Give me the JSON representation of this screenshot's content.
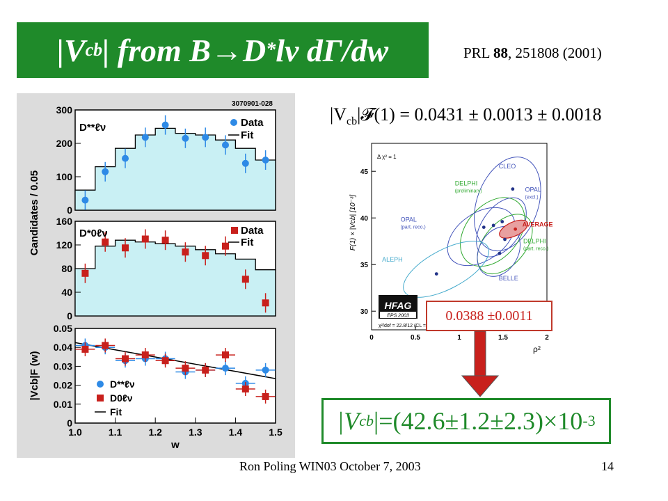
{
  "slide": {
    "title_open": "|V",
    "title_sub": "cb",
    "title_mid": "| from B",
    "title_arrow": "→",
    "title_D": "D",
    "title_star": "*",
    "title_end": "lν dΓ/dw",
    "reference_prefix": "PRL ",
    "reference_volume": "88",
    "reference_suffix": ", 251808 (2001)",
    "formula": "|V_cb|F(1) = 0.0431 ± 0.0013 ± 0.0018",
    "formula_left": "|V",
    "formula_sub": "cb",
    "formula_F": "|𝓕(1)",
    "formula_right": " = 0.0431 ± 0.0013 ± 0.0018",
    "average_box": "0.0388 ±0.0011",
    "result_open": "|V",
    "result_sub": "cb",
    "result_body": "|=(42.6±1.2±2.3)×10",
    "result_exp": "-3",
    "footer_left": "Ron Poling WIN03 October 7, 2003",
    "footer_right": "14",
    "colors": {
      "title_bg": "#1f8a2a",
      "accent_red": "#c8201c",
      "fill_cyan": "#c9f0f4"
    }
  },
  "chart_data": [
    {
      "type": "scatter",
      "panel": "top",
      "figure_id": "3070901-028",
      "decay_label": "D**ℓν",
      "ylabel": "Candidates / 0.05",
      "ylim": [
        0,
        300
      ],
      "yticks": [
        "0",
        "100",
        "200",
        "300"
      ],
      "legend": [
        "Data",
        "Fit"
      ],
      "series": [
        {
          "name": "Data",
          "x": [
            1.025,
            1.075,
            1.125,
            1.175,
            1.225,
            1.275,
            1.325,
            1.375,
            1.425,
            1.475
          ],
          "y": [
            30,
            115,
            155,
            218,
            255,
            215,
            218,
            195,
            140,
            150
          ]
        },
        {
          "name": "Fit",
          "x": [
            1.0,
            1.05,
            1.1,
            1.15,
            1.2,
            1.25,
            1.3,
            1.35,
            1.4,
            1.45,
            1.5
          ],
          "y": [
            60,
            130,
            185,
            225,
            245,
            230,
            225,
            210,
            185,
            150,
            150
          ]
        }
      ]
    },
    {
      "type": "scatter",
      "panel": "middle",
      "decay_label": "D*0ℓν",
      "ylabel": "Candidates / 0.05",
      "ylim": [
        0,
        160
      ],
      "yticks": [
        "0",
        "40",
        "80",
        "120",
        "160"
      ],
      "legend": [
        "Data",
        "Fit"
      ],
      "series": [
        {
          "name": "Data",
          "x": [
            1.025,
            1.075,
            1.125,
            1.175,
            1.225,
            1.275,
            1.325,
            1.375,
            1.425,
            1.475
          ],
          "y": [
            72,
            125,
            115,
            130,
            128,
            108,
            102,
            118,
            62,
            22
          ]
        },
        {
          "name": "Fit",
          "x": [
            1.0,
            1.05,
            1.1,
            1.15,
            1.2,
            1.25,
            1.3,
            1.35,
            1.4,
            1.45,
            1.5
          ],
          "y": [
            80,
            118,
            128,
            125,
            122,
            118,
            112,
            105,
            96,
            78,
            40
          ]
        }
      ]
    },
    {
      "type": "scatter",
      "panel": "bottom",
      "ylabel": "|Vcb|F (w)",
      "xlabel": "w",
      "xlim": [
        1.0,
        1.5
      ],
      "ylim": [
        0,
        0.05
      ],
      "xticks": [
        "1.0",
        "1.1",
        "1.2",
        "1.3",
        "1.4",
        "1.5"
      ],
      "yticks": [
        "0",
        "0.01",
        "0.02",
        "0.03",
        "0.04",
        "0.05"
      ],
      "legend": [
        "D**ℓν",
        "D0ℓν",
        "Fit"
      ],
      "series": [
        {
          "name": "D**ℓν",
          "x": [
            1.025,
            1.075,
            1.125,
            1.175,
            1.225,
            1.275,
            1.325,
            1.375,
            1.425,
            1.475
          ],
          "y": [
            0.041,
            0.04,
            0.033,
            0.034,
            0.034,
            0.027,
            0.028,
            0.029,
            0.021,
            0.028
          ]
        },
        {
          "name": "D0ℓν",
          "x": [
            1.025,
            1.075,
            1.125,
            1.175,
            1.225,
            1.275,
            1.325,
            1.375,
            1.425,
            1.475
          ],
          "y": [
            0.039,
            0.041,
            0.034,
            0.036,
            0.033,
            0.029,
            0.028,
            0.036,
            0.018,
            0.014
          ]
        },
        {
          "name": "Fit",
          "x": [
            1.0,
            1.5
          ],
          "y": [
            0.0425,
            0.0235
          ]
        }
      ]
    },
    {
      "type": "scatter",
      "panel": "hfag-average",
      "ylabel": "F(1) × |Vcb| [10⁻³]",
      "xlabel": "ρ²",
      "xlim": [
        0,
        2
      ],
      "ylim": [
        28,
        48
      ],
      "xticks": [
        "0",
        "0.5",
        "1",
        "1.5",
        "2"
      ],
      "yticks": [
        "30",
        "35",
        "40",
        "45"
      ],
      "annotation_top": "Δ χ² = 1",
      "annotation_bottom": "χ²/dof = 22.8/12 (CL = 2.9%)",
      "logo": "HFAG",
      "logo_sub": "EPS 2003",
      "series": [
        {
          "name": "CLEO",
          "x": [
            1.61
          ],
          "y": [
            43.1
          ]
        },
        {
          "name": "DELPHI (preliminary)",
          "x": [
            1.39
          ],
          "y": [
            39.2
          ]
        },
        {
          "name": "OPAL (excl.)",
          "x": [
            1.49
          ],
          "y": [
            39.6
          ]
        },
        {
          "name": "OPAL (part. reco.)",
          "x": [
            1.28
          ],
          "y": [
            39.0
          ]
        },
        {
          "name": "AVERAGE",
          "x": [
            1.64
          ],
          "y": [
            38.8
          ]
        },
        {
          "name": "DELPHI (part. reco.)",
          "x": [
            1.52
          ],
          "y": [
            37.7
          ]
        },
        {
          "name": "BELLE",
          "x": [
            1.46
          ],
          "y": [
            36.2
          ]
        },
        {
          "name": "ALEPH",
          "x": [
            0.74
          ],
          "y": [
            34.0
          ]
        }
      ]
    }
  ]
}
